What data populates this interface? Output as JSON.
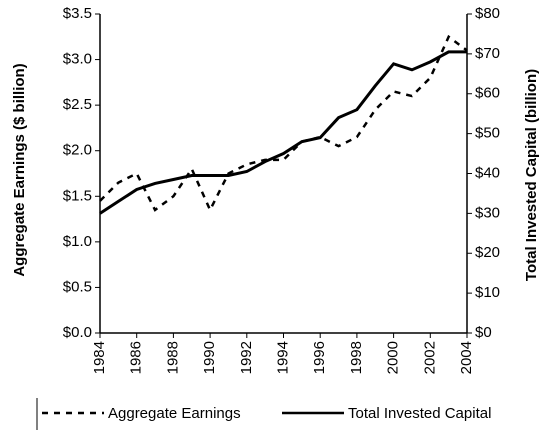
{
  "chart_data": {
    "type": "line",
    "y_label": "Aggregate Earnings ($ billion)",
    "y2_label": "Total Invested Capital (billion)",
    "x": [
      1984,
      1985,
      1986,
      1987,
      1988,
      1989,
      1990,
      1991,
      1992,
      1993,
      1994,
      1995,
      1996,
      1997,
      1998,
      1999,
      2000,
      2001,
      2002,
      2003,
      2004
    ],
    "xlim": [
      1984,
      2004
    ],
    "xticks": [
      1984,
      1986,
      1988,
      1990,
      1992,
      1994,
      1996,
      1998,
      2000,
      2002,
      2004
    ],
    "ylim": [
      0,
      3.5
    ],
    "yticks": [
      {
        "value": 0,
        "label": "$0.0"
      },
      {
        "value": 0.5,
        "label": "$0.5"
      },
      {
        "value": 1,
        "label": "$1.0"
      },
      {
        "value": 1.5,
        "label": "$1.5"
      },
      {
        "value": 2,
        "label": "$2.0"
      },
      {
        "value": 2.5,
        "label": "$2.5"
      },
      {
        "value": 3,
        "label": "$3.0"
      },
      {
        "value": 3.5,
        "label": "$3.5"
      }
    ],
    "y2lim": [
      0,
      80
    ],
    "y2ticks": [
      {
        "value": 0,
        "label": "$0"
      },
      {
        "value": 10,
        "label": "$10"
      },
      {
        "value": 20,
        "label": "$20"
      },
      {
        "value": 30,
        "label": "$30"
      },
      {
        "value": 40,
        "label": "$40"
      },
      {
        "value": 50,
        "label": "$50"
      },
      {
        "value": 60,
        "label": "$60"
      },
      {
        "value": 70,
        "label": "$70"
      },
      {
        "value": 80,
        "label": "$80"
      }
    ],
    "series": [
      {
        "name": "Aggregate Earnings",
        "color": "#000000",
        "dash": "dashed",
        "values": [
          1.45,
          1.65,
          1.75,
          1.35,
          1.5,
          1.8,
          1.35,
          1.75,
          1.85,
          1.9,
          1.9,
          2.1,
          2.15,
          2.05,
          2.15,
          2.45,
          2.65,
          2.6,
          2.8,
          3.25,
          3.1
        ]
      },
      {
        "name": "Total Invested Capital",
        "color": "#000000",
        "dash": "solid",
        "axis": "y2",
        "values": [
          30,
          33,
          36,
          37.5,
          38.5,
          39.5,
          39.5,
          39.5,
          40.5,
          43,
          45,
          48,
          49,
          54,
          56,
          62,
          67.5,
          66,
          68,
          70.5,
          70.5
        ]
      }
    ]
  }
}
